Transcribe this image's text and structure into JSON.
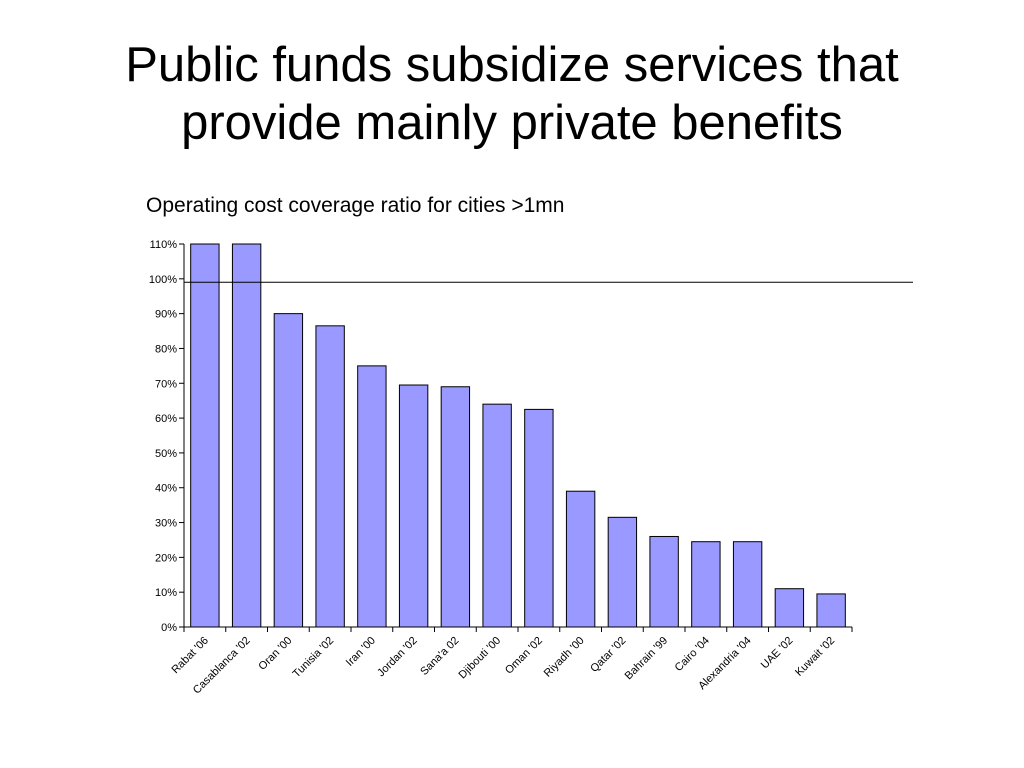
{
  "slide": {
    "title_line1": "Public funds subsidize services that",
    "title_line2": "provide mainly private benefits"
  },
  "chart_data": {
    "type": "bar",
    "title": "Operating cost coverage ratio for cities >1mn",
    "xlabel": "",
    "ylabel": "",
    "categories": [
      "Rabat '06",
      "Casablanca '02",
      "Oran '00",
      "Tunisia '02",
      "Iran '00",
      "Jordan '02",
      "Sana'a 02",
      "Djibouti '00",
      "Oman '02",
      "Riyadh '00",
      "Qatar '02",
      "Bahrain '99",
      "Cairo '04",
      "Alexandria '04",
      "UAE '02",
      "Kuwait '02"
    ],
    "values": [
      110,
      110,
      90,
      86.5,
      75,
      69.5,
      69,
      64,
      62.5,
      39,
      31.5,
      26,
      24.5,
      24.5,
      11,
      9.5
    ],
    "value_format": "percent",
    "ylim": [
      0,
      110
    ],
    "yticks": [
      0,
      10,
      20,
      30,
      40,
      50,
      60,
      70,
      80,
      90,
      100,
      110
    ],
    "ytick_labels": [
      "0%",
      "10%",
      "20%",
      "30%",
      "40%",
      "50%",
      "60%",
      "70%",
      "80%",
      "90%",
      "100%",
      "110%"
    ],
    "reference_line": 99,
    "grid": false,
    "legend": "none",
    "bar_color": "#9999ff",
    "bar_edge_color": "#000000"
  }
}
